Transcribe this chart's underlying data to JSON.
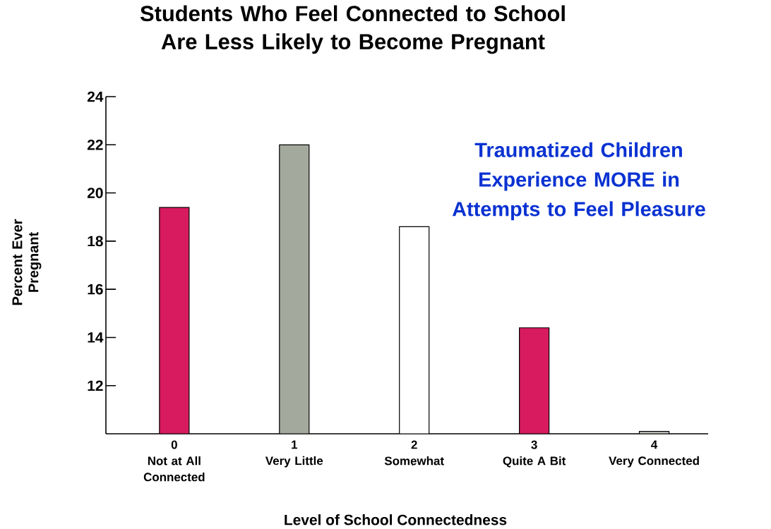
{
  "chart_data": {
    "type": "bar",
    "title": "Students Who Feel Connected to School Are Less Likely to Become Pregnant",
    "xlabel": "Level of School Connectedness",
    "ylabel": "Percent Ever Pregnant",
    "categories": [
      "0",
      "1",
      "2",
      "3",
      "4"
    ],
    "values": [
      19.4,
      22.0,
      18.6,
      14.4,
      10.1
    ],
    "colors": [
      "#d81b5e",
      "#a3a99c",
      "#ffffff",
      "#d81b5e",
      "#c8ccc4"
    ],
    "ylim": [
      10,
      24
    ],
    "yticks": [
      12,
      14,
      16,
      18,
      20,
      22,
      24
    ],
    "annotations": [
      "Traumatized Children Experience MORE in Attempts to Feel Pleasure",
      "Not at All Connected",
      "Very Little",
      "Somewhat",
      "Quite A Bit",
      "Very Connected"
    ]
  }
}
